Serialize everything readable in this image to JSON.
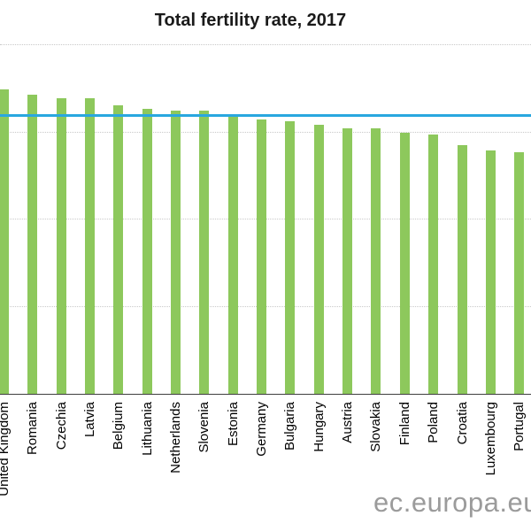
{
  "chart_data": {
    "type": "bar",
    "title": "Total fertility rate, 2017",
    "categories": [
      "United Kingdom",
      "Romania",
      "Czechia",
      "Latvia",
      "Belgium",
      "Lithuania",
      "Netherlands",
      "Slovenia",
      "Estonia",
      "Germany",
      "Bulgaria",
      "Hungary",
      "Austria",
      "Slovakia",
      "Finland",
      "Poland",
      "Croatia",
      "Luxembourg",
      "Portugal"
    ],
    "values": [
      1.74,
      1.71,
      1.69,
      1.69,
      1.65,
      1.63,
      1.62,
      1.62,
      1.59,
      1.57,
      1.56,
      1.54,
      1.52,
      1.52,
      1.49,
      1.48,
      1.42,
      1.39,
      1.38
    ],
    "xlabel": "",
    "ylabel": "",
    "ylim": [
      0,
      2.25
    ],
    "gridlines": [
      0.5,
      1.0,
      1.5,
      2.0
    ],
    "grid": "horizontal-dotted",
    "legend_position": "none",
    "reference_line": {
      "value": 1.59
    }
  },
  "watermark": {
    "text": "ec.europa.eu"
  },
  "colors": {
    "bar": "#8dc85c",
    "reference_line": "#29a7df",
    "gridline": "#c9c9c9",
    "axis": "#3f3f3f",
    "title": "#1a1a1a",
    "label": "#000000",
    "watermark": "#9b9b9b",
    "background": "#ffffff"
  }
}
